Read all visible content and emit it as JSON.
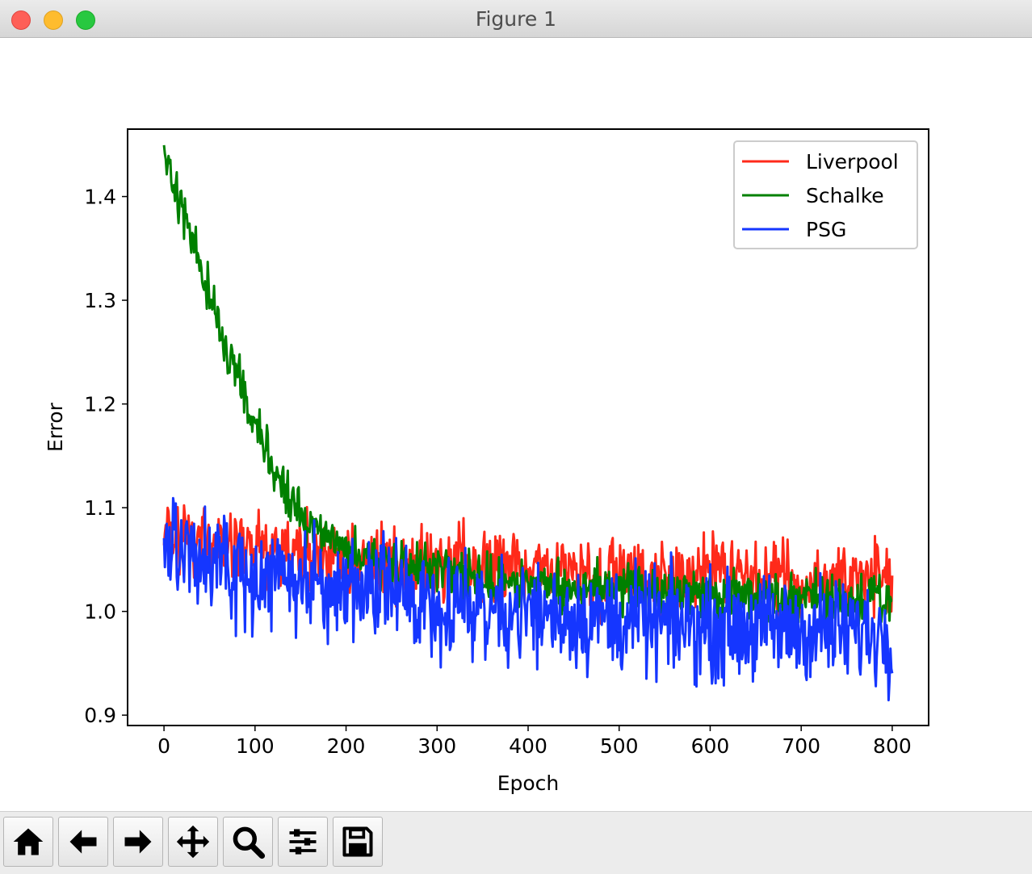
{
  "window": {
    "title": "Figure 1"
  },
  "toolbar": {
    "buttons": [
      {
        "name": "home-button",
        "icon": "home-icon"
      },
      {
        "name": "back-button",
        "icon": "arrow-left-icon"
      },
      {
        "name": "forward-button",
        "icon": "arrow-right-icon"
      },
      {
        "name": "pan-button",
        "icon": "move-icon"
      },
      {
        "name": "zoom-button",
        "icon": "magnifier-icon"
      },
      {
        "name": "configure-subplots-button",
        "icon": "sliders-icon"
      },
      {
        "name": "save-button",
        "icon": "floppy-disk-icon"
      }
    ]
  },
  "chart_data": {
    "type": "line",
    "title": "",
    "xlabel": "Epoch",
    "ylabel": "Error",
    "xlim": [
      -40,
      840
    ],
    "ylim": [
      0.89,
      1.465
    ],
    "xticks": [
      0,
      100,
      200,
      300,
      400,
      500,
      600,
      700,
      800
    ],
    "xtick_labels": [
      "0",
      "100",
      "200",
      "300",
      "400",
      "500",
      "600",
      "700",
      "800"
    ],
    "yticks": [
      0.9,
      1.0,
      1.1,
      1.2,
      1.3,
      1.4
    ],
    "ytick_labels": [
      "0.9",
      "1.0",
      "1.1",
      "1.2",
      "1.3",
      "1.4"
    ],
    "grid": false,
    "legend_position": "top-right",
    "x_range": [
      0,
      800
    ],
    "series": [
      {
        "name": "Liverpool",
        "color": "#ff2a1a",
        "x": [
          0,
          25,
          50,
          75,
          100,
          125,
          150,
          175,
          200,
          225,
          250,
          275,
          300,
          325,
          350,
          375,
          400,
          425,
          450,
          475,
          500,
          525,
          550,
          575,
          600,
          625,
          650,
          675,
          700,
          725,
          750,
          775,
          800
        ],
        "y": [
          1.075,
          1.07,
          1.065,
          1.062,
          1.06,
          1.058,
          1.056,
          1.054,
          1.052,
          1.05,
          1.048,
          1.046,
          1.044,
          1.043,
          1.042,
          1.041,
          1.04,
          1.039,
          1.038,
          1.037,
          1.036,
          1.035,
          1.034,
          1.034,
          1.033,
          1.033,
          1.032,
          1.032,
          1.031,
          1.031,
          1.03,
          1.03,
          1.03
        ],
        "noise": 0.018
      },
      {
        "name": "Schalke",
        "color": "#008000",
        "x": [
          0,
          10,
          20,
          30,
          40,
          50,
          60,
          70,
          80,
          90,
          100,
          110,
          120,
          130,
          140,
          150,
          160,
          170,
          180,
          200,
          220,
          250,
          300,
          350,
          400,
          450,
          500,
          550,
          600,
          650,
          700,
          750,
          800
        ],
        "y": [
          1.445,
          1.41,
          1.385,
          1.36,
          1.33,
          1.3,
          1.275,
          1.25,
          1.225,
          1.2,
          1.178,
          1.157,
          1.138,
          1.12,
          1.105,
          1.093,
          1.083,
          1.075,
          1.068,
          1.06,
          1.052,
          1.045,
          1.038,
          1.033,
          1.028,
          1.024,
          1.021,
          1.018,
          1.016,
          1.014,
          1.012,
          1.011,
          1.01
        ],
        "noise": 0.012
      },
      {
        "name": "PSG",
        "color": "#1536ff",
        "x": [
          0,
          25,
          50,
          75,
          100,
          125,
          150,
          175,
          200,
          225,
          250,
          275,
          300,
          325,
          350,
          375,
          400,
          425,
          450,
          475,
          500,
          525,
          550,
          575,
          600,
          625,
          650,
          675,
          700,
          725,
          750,
          775,
          800
        ],
        "y": [
          1.075,
          1.06,
          1.048,
          1.04,
          1.035,
          1.03,
          1.026,
          1.023,
          1.02,
          1.018,
          1.016,
          1.013,
          1.01,
          1.007,
          1.005,
          1.002,
          1.0,
          0.998,
          0.996,
          0.994,
          0.992,
          0.99,
          0.988,
          0.987,
          0.986,
          0.985,
          0.984,
          0.983,
          0.982,
          0.982,
          0.981,
          0.98,
          0.98
        ],
        "noise": 0.025
      }
    ]
  }
}
